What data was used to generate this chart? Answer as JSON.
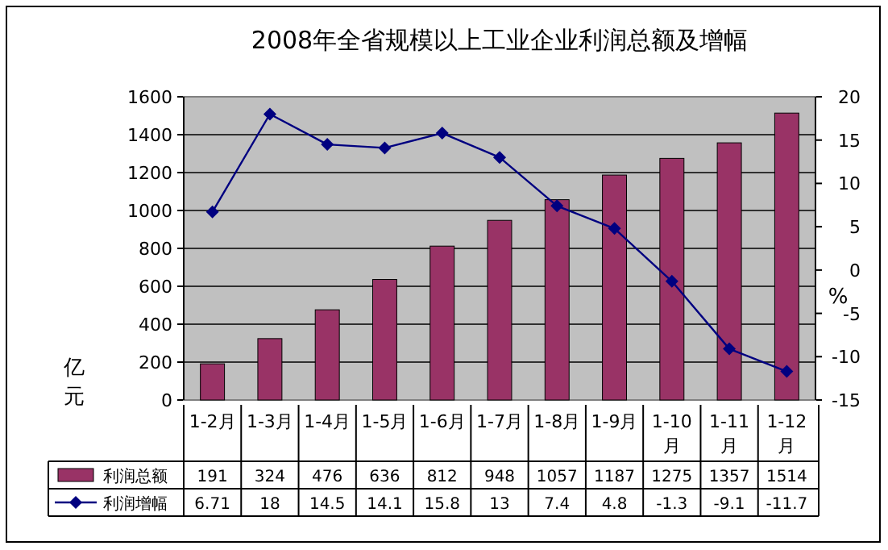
{
  "chart_data": {
    "type": "bar",
    "title": "2008年全省规模以上工业企业利润总额及增幅",
    "ylabel": "亿元",
    "y2label": "%",
    "categories": [
      "1-2月",
      "1-3月",
      "1-4月",
      "1-5月",
      "1-6月",
      "1-7月",
      "1-8月",
      "1-9月",
      "1-10月",
      "1-11月",
      "1-12月"
    ],
    "series": [
      {
        "name": "利润总额",
        "color": "#993366",
        "values": [
          191,
          324,
          476,
          636,
          812,
          948,
          1057,
          1187,
          1275,
          1357,
          1514
        ]
      },
      {
        "name": "利润增幅",
        "type": "line",
        "axis": "y2",
        "color": "#000080",
        "marker": "diamond",
        "values": [
          6.71,
          18,
          14.5,
          14.1,
          15.8,
          13,
          7.4,
          4.8,
          -1.3,
          -9.1,
          -11.7
        ]
      }
    ],
    "ylim": [
      0,
      1600
    ],
    "yticks": [
      0,
      200,
      400,
      600,
      800,
      1000,
      1200,
      1400,
      1600
    ],
    "y2lim": [
      -15,
      20
    ],
    "y2ticks": [
      -15,
      -10,
      -5,
      0,
      5,
      10,
      15,
      20
    ],
    "grid": "y",
    "legend": "bottom",
    "data_labels": true
  }
}
